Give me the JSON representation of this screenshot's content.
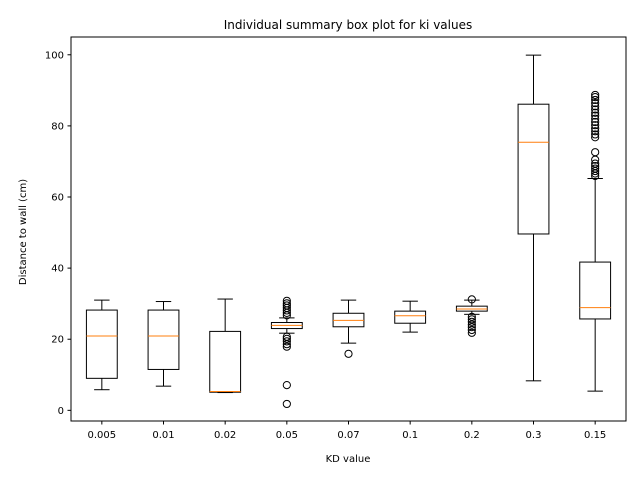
{
  "chart_data": {
    "type": "box",
    "title": "Individual summary box plot for ki values",
    "xlabel": "KD value",
    "ylabel": "Distance to wall (cm)",
    "ylim": [
      -3,
      105
    ],
    "yticks": [
      0,
      20,
      40,
      60,
      80,
      100
    ],
    "grid": false,
    "legend": "none",
    "colors": {
      "box": "#000000",
      "median": "#ff7f0e",
      "background": "#ffffff"
    },
    "categories": [
      "0.005",
      "0.01",
      "0.02",
      "0.05",
      "0.07",
      "0.1",
      "0.2",
      "0.3",
      "0.15"
    ],
    "boxes": [
      {
        "label": "0.005",
        "whisker_low": 5.8,
        "q1": 9.0,
        "median": 20.9,
        "q3": 28.2,
        "whisker_high": 31.0,
        "outliers": []
      },
      {
        "label": "0.01",
        "whisker_low": 6.8,
        "q1": 11.5,
        "median": 20.9,
        "q3": 28.2,
        "whisker_high": 30.6,
        "outliers": []
      },
      {
        "label": "0.02",
        "whisker_low": 5.0,
        "q1": 5.1,
        "median": 5.3,
        "q3": 22.2,
        "whisker_high": 31.3,
        "outliers": []
      },
      {
        "label": "0.05",
        "whisker_low": 21.7,
        "q1": 23.0,
        "median": 23.9,
        "q3": 24.7,
        "whisker_high": 26.0,
        "outliers": [
          1.8,
          7.1,
          17.9,
          18.6,
          19.4,
          20.1,
          20.7,
          26.7,
          27.4,
          28.1,
          28.8,
          29.5,
          30.1,
          30.8
        ]
      },
      {
        "label": "0.07",
        "whisker_low": 18.9,
        "q1": 23.5,
        "median": 25.3,
        "q3": 27.3,
        "whisker_high": 31.0,
        "outliers": [
          15.9
        ]
      },
      {
        "label": "0.1",
        "whisker_low": 22.0,
        "q1": 24.5,
        "median": 26.6,
        "q3": 27.9,
        "whisker_high": 30.7,
        "outliers": []
      },
      {
        "label": "0.2",
        "whisker_low": 27.0,
        "q1": 27.9,
        "median": 28.5,
        "q3": 29.3,
        "whisker_high": 31.0,
        "outliers": [
          21.8,
          22.6,
          23.4,
          24.1,
          24.9,
          25.6,
          26.3,
          31.2
        ]
      },
      {
        "label": "0.3",
        "whisker_low": 8.3,
        "q1": 49.6,
        "median": 75.4,
        "q3": 86.1,
        "whisker_high": 99.9,
        "outliers": []
      },
      {
        "label": "0.15",
        "whisker_low": 5.4,
        "q1": 25.7,
        "median": 28.9,
        "q3": 41.7,
        "whisker_high": 65.2,
        "outliers": [
          65.9,
          66.6,
          67.3,
          68.0,
          68.7,
          69.4,
          70.5,
          72.6,
          76.8,
          77.6,
          78.5,
          79.3,
          80.2,
          81.1,
          82.0,
          82.9,
          83.7,
          84.6,
          85.5,
          86.4,
          87.3,
          88.1,
          88.7
        ]
      }
    ]
  }
}
